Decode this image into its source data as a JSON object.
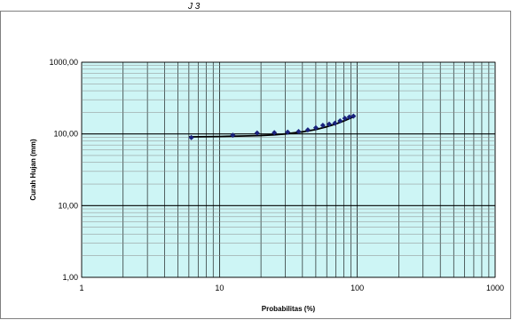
{
  "header_fragment": "J   3",
  "chart_data": {
    "type": "scatter",
    "xlabel": "Probabilitas (%)",
    "ylabel": "Curah Hujan (mm)",
    "x_scale": "log",
    "y_scale": "log",
    "xlim": [
      1,
      1000
    ],
    "ylim": [
      1,
      1000
    ],
    "x_ticks": [
      1,
      10,
      100,
      1000
    ],
    "x_tick_labels": [
      "1",
      "10",
      "100",
      "1000"
    ],
    "y_ticks": [
      1,
      10,
      100,
      1000
    ],
    "y_tick_labels": [
      "1,00",
      "10,00",
      "100,00",
      "1000,00"
    ],
    "grid": true,
    "plot_background": "#cdf5f5",
    "series": [
      {
        "kind": "points",
        "color": "#1a237e",
        "x": [
          6.25,
          12.5,
          18.75,
          25,
          31.25,
          37.5,
          43.75,
          50,
          56.25,
          62.5,
          68.75,
          75,
          81.25,
          87.5,
          93.75
        ],
        "y": [
          89,
          96,
          103,
          104,
          106,
          108,
          114,
          122,
          132,
          137,
          141,
          152,
          165,
          172,
          177
        ]
      },
      {
        "kind": "trendline",
        "color": "#000000",
        "x": [
          6,
          10,
          15,
          20,
          25,
          30,
          40,
          50,
          60,
          70,
          80,
          90,
          97
        ],
        "y": [
          91,
          92,
          93.5,
          95,
          97,
          100,
          107,
          115,
          126,
          138,
          152,
          167,
          179
        ]
      }
    ]
  }
}
